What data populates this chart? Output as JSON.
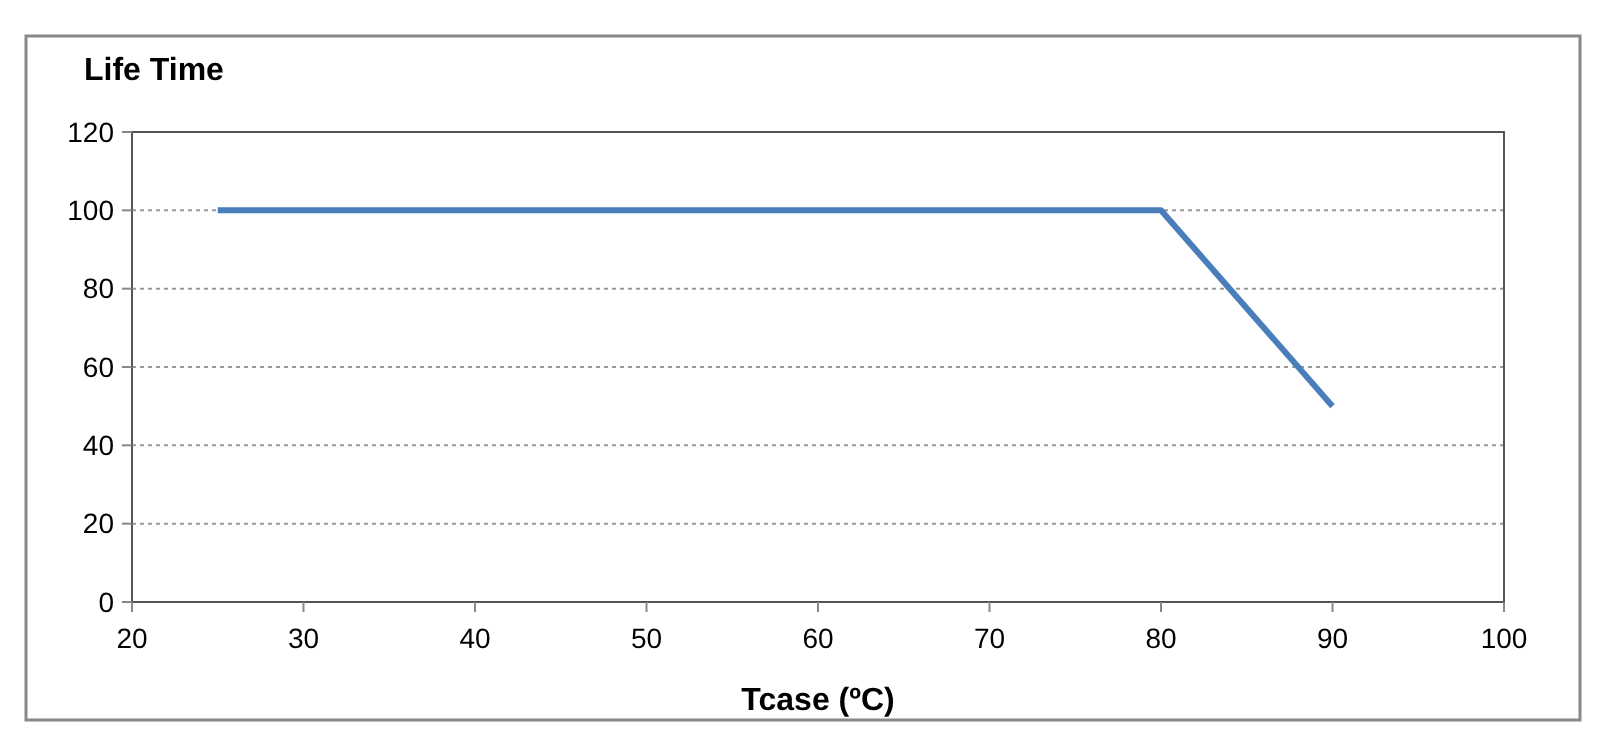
{
  "chart_data": {
    "type": "line",
    "ylabel": "Life Time",
    "xlabel": "Tcase (ºC)",
    "x": [
      25,
      80,
      90
    ],
    "series": [
      {
        "color": "#4a7ebb",
        "values": [
          100,
          100,
          50
        ]
      }
    ],
    "xlim": [
      20,
      100
    ],
    "xticks": [
      20,
      30,
      40,
      50,
      60,
      70,
      80,
      90,
      100
    ],
    "ylim": [
      0,
      120
    ],
    "yticks": [
      0,
      20,
      40,
      60,
      80,
      100,
      120
    ],
    "grid": "y",
    "marker": "none",
    "line_style": "solid"
  }
}
